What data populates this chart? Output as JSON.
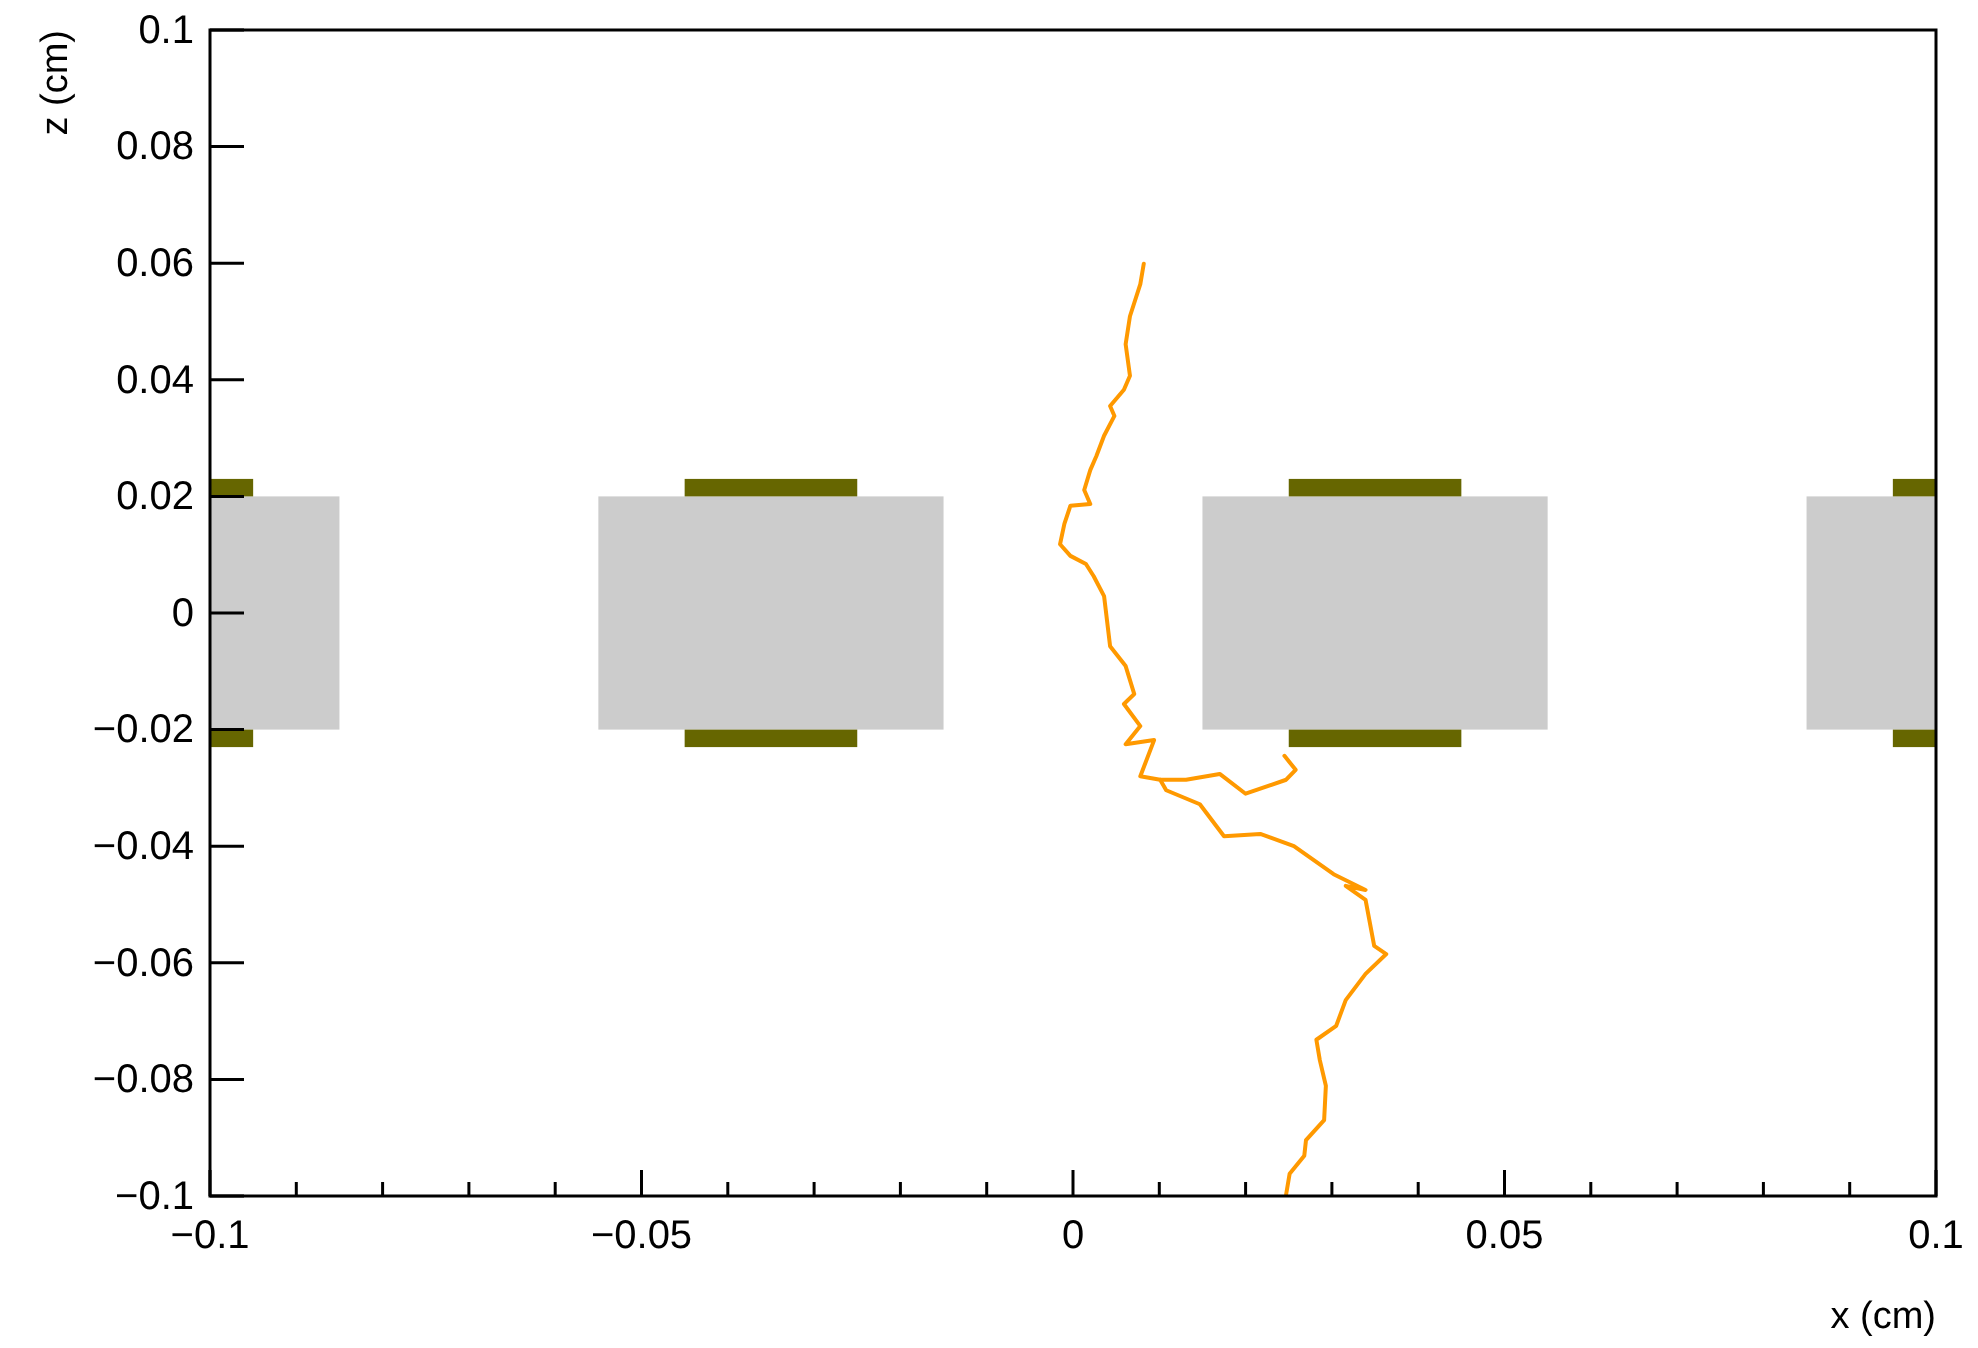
{
  "chart_data": {
    "type": "line",
    "xlabel": "x (cm)",
    "ylabel": "z (cm)",
    "xlim": [
      -0.1,
      0.1
    ],
    "ylim": [
      -0.1,
      0.1
    ],
    "xticks": [
      {
        "value": -0.1,
        "label": "−0.1"
      },
      {
        "value": -0.09,
        "label": null
      },
      {
        "value": -0.08,
        "label": null
      },
      {
        "value": -0.07,
        "label": null
      },
      {
        "value": -0.06,
        "label": null
      },
      {
        "value": -0.05,
        "label": "−0.05"
      },
      {
        "value": -0.04,
        "label": null
      },
      {
        "value": -0.03,
        "label": null
      },
      {
        "value": -0.02,
        "label": null
      },
      {
        "value": -0.01,
        "label": null
      },
      0,
      {
        "value": 0.01,
        "label": null
      },
      {
        "value": 0.02,
        "label": null
      },
      {
        "value": 0.03,
        "label": null
      },
      {
        "value": 0.04,
        "label": null
      },
      0.05,
      {
        "value": 0.06,
        "label": null
      },
      {
        "value": 0.07,
        "label": null
      },
      {
        "value": 0.08,
        "label": null
      },
      {
        "value": 0.09,
        "label": null
      },
      0.1
    ],
    "yticks": [
      {
        "value": -0.1,
        "label": "−0.1"
      },
      {
        "value": -0.08,
        "label": "−0.08"
      },
      {
        "value": -0.06,
        "label": "−0.06"
      },
      {
        "value": -0.04,
        "label": "−0.04"
      },
      {
        "value": -0.02,
        "label": "−0.02"
      },
      0,
      0.02,
      0.04,
      0.06,
      0.08,
      0.1
    ],
    "grid": false,
    "series": [
      {
        "color": "#ff9900",
        "x": [
          0.0082,
          0.0078,
          0.0066,
          0.0061,
          0.0066,
          0.0059,
          0.0043,
          0.0048,
          0.0036,
          0.0027,
          0.002,
          0.0013,
          0.002,
          -0.0003,
          -0.001,
          -0.0015,
          -0.0003,
          0.0015,
          0.0024,
          0.0036,
          0.0043,
          0.0061,
          0.0071,
          0.0059,
          0.0078,
          0.0061,
          0.0094,
          0.0078,
          0.0101,
          0.0108,
          0.0147,
          0.0175,
          0.0217,
          0.0256,
          0.0302,
          0.0339,
          0.0316,
          0.0339,
          0.0349,
          0.0363,
          0.0339,
          0.0316,
          0.0305,
          0.0282,
          0.0286,
          0.0293,
          0.0291,
          0.027,
          0.0268,
          0.0251,
          0.0247
        ],
        "values": [
          0.0599,
          0.0564,
          0.0509,
          0.0461,
          0.0407,
          0.0383,
          0.0355,
          0.0338,
          0.0304,
          0.0269,
          0.0245,
          0.0211,
          0.0187,
          0.0184,
          0.0153,
          0.0118,
          0.0098,
          0.0084,
          0.0063,
          0.0029,
          -0.0057,
          -0.0091,
          -0.0139,
          -0.0156,
          -0.0194,
          -0.0225,
          -0.0218,
          -0.028,
          -0.0286,
          -0.0304,
          -0.0328,
          -0.0383,
          -0.0379,
          -0.04,
          -0.0448,
          -0.0475,
          -0.0468,
          -0.0492,
          -0.0571,
          -0.0585,
          -0.0619,
          -0.0664,
          -0.0708,
          -0.0732,
          -0.0767,
          -0.0811,
          -0.087,
          -0.0904,
          -0.0931,
          -0.0962,
          -0.0997
        ]
      },
      {
        "color": "#ff9900",
        "x": [
          0.0101,
          0.0131,
          0.017,
          0.02,
          0.0247,
          0.0258,
          0.0245
        ],
        "values": [
          -0.0286,
          -0.0286,
          -0.0276,
          -0.031,
          -0.0286,
          -0.0269,
          -0.0245
        ]
      }
    ]
  }
}
